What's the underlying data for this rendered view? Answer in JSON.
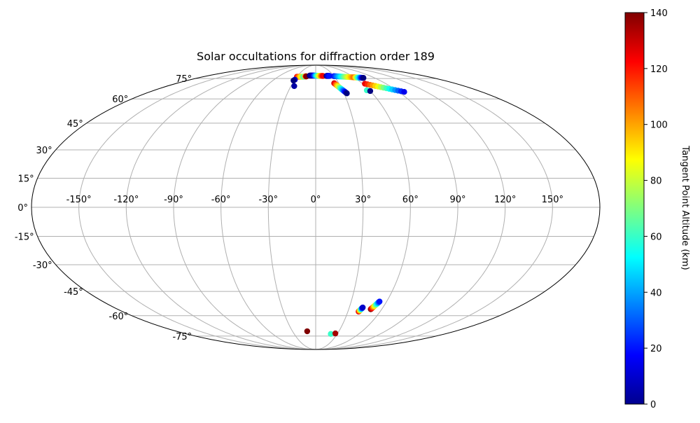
{
  "chart_data": {
    "type": "scatter",
    "projection": "mollweide",
    "title": "Solar occultations for diffraction order 189",
    "lon_ticks": [
      -150,
      -120,
      -90,
      -60,
      -30,
      0,
      30,
      60,
      90,
      120,
      150
    ],
    "lon_tick_labels": [
      "-150°",
      "-120°",
      "-90°",
      "-60°",
      "-30°",
      "0°",
      "30°",
      "60°",
      "90°",
      "120°",
      "150°"
    ],
    "lat_ticks": [
      -75,
      -60,
      -45,
      -30,
      -15,
      0,
      15,
      30,
      45,
      60,
      75
    ],
    "lat_tick_labels": [
      "-75°",
      "-60°",
      "-45°",
      "-30°",
      "-15°",
      "0°",
      "15°",
      "30°",
      "45°",
      "60°",
      "75°"
    ],
    "grid": true,
    "colormap": "jet",
    "colorbar": {
      "label": "Tangent Point Altitude (km)",
      "range": [
        0,
        140
      ],
      "ticks": [
        0,
        20,
        40,
        60,
        80,
        100,
        120,
        140
      ],
      "tick_labels": [
        "0",
        "20",
        "40",
        "60",
        "80",
        "100",
        "120",
        "140"
      ]
    },
    "tracks": [
      {
        "lon_start": -30,
        "lat_start": 76.5,
        "lon_end": -18,
        "lat_end": 76.5,
        "alt_start": 125,
        "alt_end": 60
      },
      {
        "lon_start": -18,
        "lat_start": 76.8,
        "lon_end": -15,
        "lat_end": 76.8,
        "alt_start": 60,
        "alt_end": 140
      },
      {
        "lon_start": -10,
        "lat_start": 77.5,
        "lon_end": -3,
        "lat_end": 77.5,
        "alt_start": 0,
        "alt_end": 10
      },
      {
        "lon_start": -3,
        "lat_start": 77.5,
        "lon_end": 12,
        "lat_end": 77.2,
        "alt_start": 20,
        "alt_end": 125
      },
      {
        "lon_start": 18,
        "lat_start": 77.2,
        "lon_end": 23,
        "lat_end": 77.2,
        "alt_start": 0,
        "alt_end": 20
      },
      {
        "lon_start": 30,
        "lat_start": 77.0,
        "lon_end": 60,
        "lat_end": 76.0,
        "alt_start": 20,
        "alt_end": 110
      },
      {
        "lon_start": 60,
        "lat_start": 76.0,
        "lon_end": 73,
        "lat_end": 75.5,
        "alt_start": 110,
        "alt_end": 0
      },
      {
        "lon_start": 24,
        "lat_start": 71.2,
        "lon_end": 33,
        "lat_end": 63.8,
        "alt_start": 130,
        "alt_end": 0
      },
      {
        "lon_start": 63,
        "lat_start": 70.8,
        "lon_end": 96,
        "lat_end": 64.8,
        "alt_start": 125,
        "alt_end": 15
      },
      {
        "lon_start": 40,
        "lat_start": -57.3,
        "lon_end": 42,
        "lat_end": -54.7,
        "alt_start": 130,
        "alt_end": 10
      },
      {
        "lon_start": 50,
        "lat_start": -55.8,
        "lon_end": 54,
        "lat_end": -51.0,
        "alt_start": 140,
        "alt_end": 20
      }
    ],
    "points": [
      {
        "lon": -30,
        "lat": 74.0,
        "alt": 10
      },
      {
        "lon": -31,
        "lat": 73.3,
        "alt": 0
      },
      {
        "lon": -26,
        "lat": 69.0,
        "alt": 5
      },
      {
        "lon": 57,
        "lat": 65.9,
        "alt": 60
      },
      {
        "lon": 60,
        "lat": 65.4,
        "alt": 0
      },
      {
        "lon": -11,
        "lat": -71.1,
        "alt": 140
      },
      {
        "lon": 21,
        "lat": -73.2,
        "alt": 60
      },
      {
        "lon": 27,
        "lat": -72.8,
        "alt": 135
      }
    ]
  }
}
